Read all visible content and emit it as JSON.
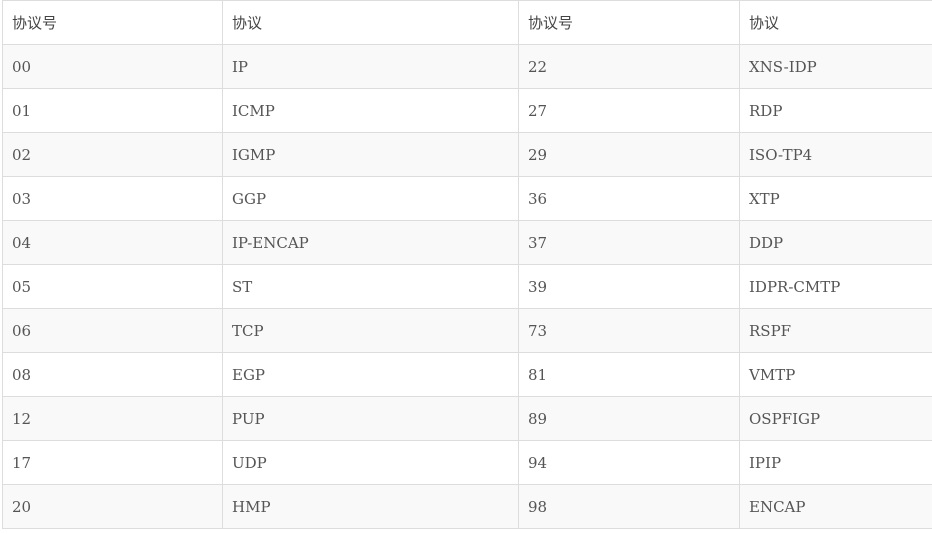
{
  "table": {
    "headers": [
      "协议号",
      "协议",
      "协议号",
      "协议"
    ],
    "rows": [
      [
        "00",
        "IP",
        "22",
        "XNS-IDP"
      ],
      [
        "01",
        "ICMP",
        "27",
        "RDP"
      ],
      [
        "02",
        "IGMP",
        "29",
        "ISO-TP4"
      ],
      [
        "03",
        "GGP",
        "36",
        "XTP"
      ],
      [
        "04",
        "IP-ENCAP",
        "37",
        "DDP"
      ],
      [
        "05",
        "ST",
        "39",
        "IDPR-CMTP"
      ],
      [
        "06",
        "TCP",
        "73",
        "RSPF"
      ],
      [
        "08",
        "EGP",
        "81",
        "VMTP"
      ],
      [
        "12",
        "PUP",
        "89",
        "OSPFIGP"
      ],
      [
        "17",
        "UDP",
        "94",
        "IPIP"
      ],
      [
        "20",
        "HMP",
        "98",
        "ENCAP"
      ]
    ]
  }
}
